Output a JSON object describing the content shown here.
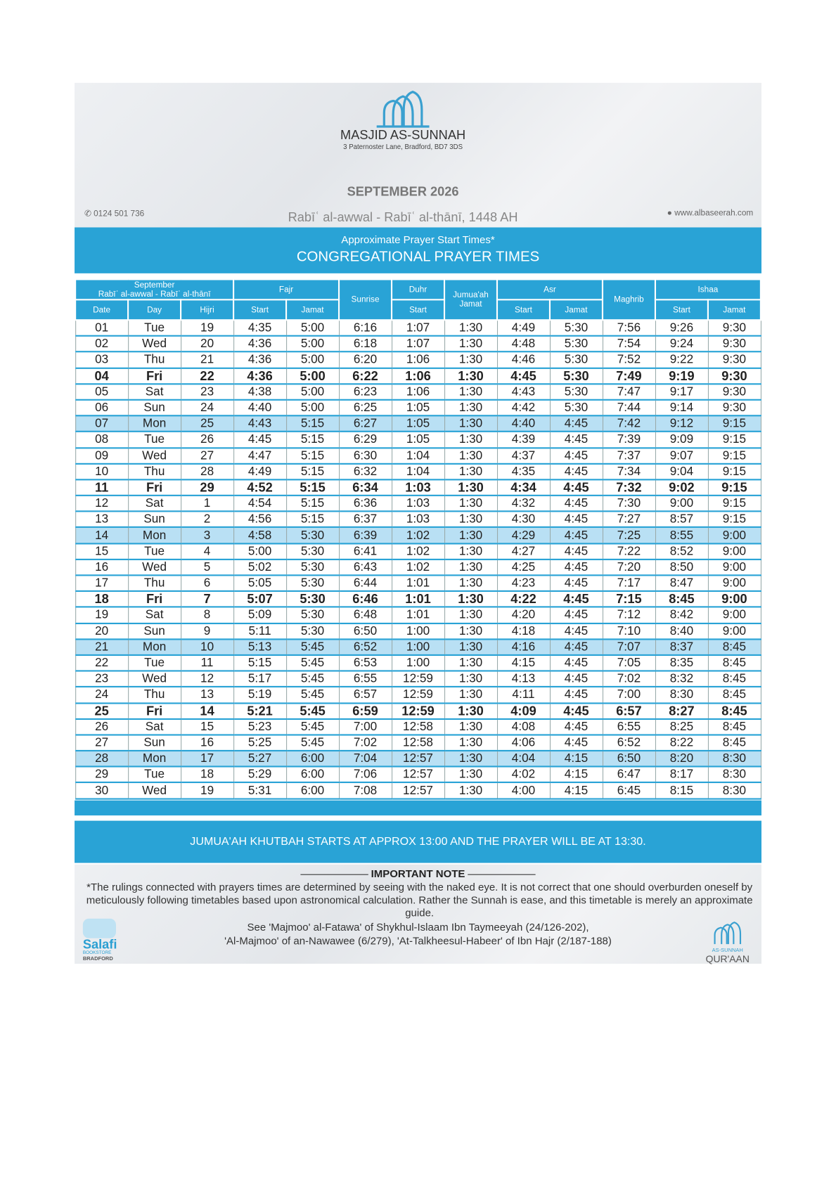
{
  "header": {
    "mosque": "MASJID AS-SUNNAH",
    "address": "3 Paternoster Lane, Bradford, BD7 3DS",
    "month": "SEPTEMBER 2026",
    "phone": "0124 501 736",
    "hijri": "Rabīʿ al-awwal - Rabīʿ al-thānī, 1448 AH",
    "website": "www.albaseerah.com",
    "subtitle": "Approximate Prayer Start Times*",
    "title": "CONGREGATIONAL PRAYER TIMES"
  },
  "table": {
    "group_header": {
      "calendar": "September",
      "calendar_sub": "Rabīʿ al-awwal - Rabīʿ al-thānī",
      "fajr": "Fajr",
      "sunrise": "Sunrise",
      "duhr": "Duhr",
      "jumuah": "Jumua'ah Jamat",
      "asr": "Asr",
      "maghrib": "Maghrib",
      "ishaa": "Ishaa"
    },
    "sub_header": {
      "date": "Date",
      "day": "Day",
      "hijri": "Hijri",
      "fajr_start": "Start",
      "fajr_jamat": "Jamat",
      "duhr_start": "Start",
      "asr_start": "Start",
      "asr_jamat": "Jamat",
      "ishaa_start": "Start",
      "ishaa_jamat": "Jamat"
    },
    "rows": [
      [
        "01",
        "Tue",
        "19",
        "4:35",
        "5:00",
        "6:16",
        "1:07",
        "1:30",
        "4:49",
        "5:30",
        "7:56",
        "9:26",
        "9:30"
      ],
      [
        "02",
        "Wed",
        "20",
        "4:36",
        "5:00",
        "6:18",
        "1:07",
        "1:30",
        "4:48",
        "5:30",
        "7:54",
        "9:24",
        "9:30"
      ],
      [
        "03",
        "Thu",
        "21",
        "4:36",
        "5:00",
        "6:20",
        "1:06",
        "1:30",
        "4:46",
        "5:30",
        "7:52",
        "9:22",
        "9:30"
      ],
      [
        "04",
        "Fri",
        "22",
        "4:36",
        "5:00",
        "6:22",
        "1:06",
        "1:30",
        "4:45",
        "5:30",
        "7:49",
        "9:19",
        "9:30"
      ],
      [
        "05",
        "Sat",
        "23",
        "4:38",
        "5:00",
        "6:23",
        "1:06",
        "1:30",
        "4:43",
        "5:30",
        "7:47",
        "9:17",
        "9:30"
      ],
      [
        "06",
        "Sun",
        "24",
        "4:40",
        "5:00",
        "6:25",
        "1:05",
        "1:30",
        "4:42",
        "5:30",
        "7:44",
        "9:14",
        "9:30"
      ],
      [
        "07",
        "Mon",
        "25",
        "4:43",
        "5:15",
        "6:27",
        "1:05",
        "1:30",
        "4:40",
        "4:45",
        "7:42",
        "9:12",
        "9:15"
      ],
      [
        "08",
        "Tue",
        "26",
        "4:45",
        "5:15",
        "6:29",
        "1:05",
        "1:30",
        "4:39",
        "4:45",
        "7:39",
        "9:09",
        "9:15"
      ],
      [
        "09",
        "Wed",
        "27",
        "4:47",
        "5:15",
        "6:30",
        "1:04",
        "1:30",
        "4:37",
        "4:45",
        "7:37",
        "9:07",
        "9:15"
      ],
      [
        "10",
        "Thu",
        "28",
        "4:49",
        "5:15",
        "6:32",
        "1:04",
        "1:30",
        "4:35",
        "4:45",
        "7:34",
        "9:04",
        "9:15"
      ],
      [
        "11",
        "Fri",
        "29",
        "4:52",
        "5:15",
        "6:34",
        "1:03",
        "1:30",
        "4:34",
        "4:45",
        "7:32",
        "9:02",
        "9:15"
      ],
      [
        "12",
        "Sat",
        "1",
        "4:54",
        "5:15",
        "6:36",
        "1:03",
        "1:30",
        "4:32",
        "4:45",
        "7:30",
        "9:00",
        "9:15"
      ],
      [
        "13",
        "Sun",
        "2",
        "4:56",
        "5:15",
        "6:37",
        "1:03",
        "1:30",
        "4:30",
        "4:45",
        "7:27",
        "8:57",
        "9:15"
      ],
      [
        "14",
        "Mon",
        "3",
        "4:58",
        "5:30",
        "6:39",
        "1:02",
        "1:30",
        "4:29",
        "4:45",
        "7:25",
        "8:55",
        "9:00"
      ],
      [
        "15",
        "Tue",
        "4",
        "5:00",
        "5:30",
        "6:41",
        "1:02",
        "1:30",
        "4:27",
        "4:45",
        "7:22",
        "8:52",
        "9:00"
      ],
      [
        "16",
        "Wed",
        "5",
        "5:02",
        "5:30",
        "6:43",
        "1:02",
        "1:30",
        "4:25",
        "4:45",
        "7:20",
        "8:50",
        "9:00"
      ],
      [
        "17",
        "Thu",
        "6",
        "5:05",
        "5:30",
        "6:44",
        "1:01",
        "1:30",
        "4:23",
        "4:45",
        "7:17",
        "8:47",
        "9:00"
      ],
      [
        "18",
        "Fri",
        "7",
        "5:07",
        "5:30",
        "6:46",
        "1:01",
        "1:30",
        "4:22",
        "4:45",
        "7:15",
        "8:45",
        "9:00"
      ],
      [
        "19",
        "Sat",
        "8",
        "5:09",
        "5:30",
        "6:48",
        "1:01",
        "1:30",
        "4:20",
        "4:45",
        "7:12",
        "8:42",
        "9:00"
      ],
      [
        "20",
        "Sun",
        "9",
        "5:11",
        "5:30",
        "6:50",
        "1:00",
        "1:30",
        "4:18",
        "4:45",
        "7:10",
        "8:40",
        "9:00"
      ],
      [
        "21",
        "Mon",
        "10",
        "5:13",
        "5:45",
        "6:52",
        "1:00",
        "1:30",
        "4:16",
        "4:45",
        "7:07",
        "8:37",
        "8:45"
      ],
      [
        "22",
        "Tue",
        "11",
        "5:15",
        "5:45",
        "6:53",
        "1:00",
        "1:30",
        "4:15",
        "4:45",
        "7:05",
        "8:35",
        "8:45"
      ],
      [
        "23",
        "Wed",
        "12",
        "5:17",
        "5:45",
        "6:55",
        "12:59",
        "1:30",
        "4:13",
        "4:45",
        "7:02",
        "8:32",
        "8:45"
      ],
      [
        "24",
        "Thu",
        "13",
        "5:19",
        "5:45",
        "6:57",
        "12:59",
        "1:30",
        "4:11",
        "4:45",
        "7:00",
        "8:30",
        "8:45"
      ],
      [
        "25",
        "Fri",
        "14",
        "5:21",
        "5:45",
        "6:59",
        "12:59",
        "1:30",
        "4:09",
        "4:45",
        "6:57",
        "8:27",
        "8:45"
      ],
      [
        "26",
        "Sat",
        "15",
        "5:23",
        "5:45",
        "7:00",
        "12:58",
        "1:30",
        "4:08",
        "4:45",
        "6:55",
        "8:25",
        "8:45"
      ],
      [
        "27",
        "Sun",
        "16",
        "5:25",
        "5:45",
        "7:02",
        "12:58",
        "1:30",
        "4:06",
        "4:45",
        "6:52",
        "8:22",
        "8:45"
      ],
      [
        "28",
        "Mon",
        "17",
        "5:27",
        "6:00",
        "7:04",
        "12:57",
        "1:30",
        "4:04",
        "4:15",
        "6:50",
        "8:20",
        "8:30"
      ],
      [
        "29",
        "Tue",
        "18",
        "5:29",
        "6:00",
        "7:06",
        "12:57",
        "1:30",
        "4:02",
        "4:15",
        "6:47",
        "8:17",
        "8:30"
      ],
      [
        "30",
        "Wed",
        "19",
        "5:31",
        "6:00",
        "7:08",
        "12:57",
        "1:30",
        "4:00",
        "4:15",
        "6:45",
        "8:15",
        "8:30"
      ]
    ]
  },
  "footer": {
    "jumuah_note": "JUMUA'AH KHUTBAH STARTS AT APPROX 13:00 AND THE PRAYER WILL BE AT 13:30.",
    "note_heading": "IMPORTANT NOTE",
    "note_text": "*The rulings connected with prayers times are determined by seeing with the naked eye. It is not correct that one should overburden oneself by meticulously following timetables based upon astronomical calculation. Rather the Sunnah is ease, and this timetable is merely an approximate guide.",
    "reference_1": "See 'Majmoo' al-Fatawa' of Shykhul-Islaam Ibn Taymeeyah (24/126-202),",
    "reference_2": "'Al-Majmoo' of an-Nawawee (6/279), 'At-Talkheesul-Habeer' of Ibn Hajr (2/187-188)",
    "left_logo": {
      "name": "Salafi",
      "line_1": "BOOKSTORE",
      "line_2": "BRADFORD"
    },
    "right_logo": {
      "name": "AS-SUNNAH",
      "line_1": "QUR'AAN"
    }
  }
}
